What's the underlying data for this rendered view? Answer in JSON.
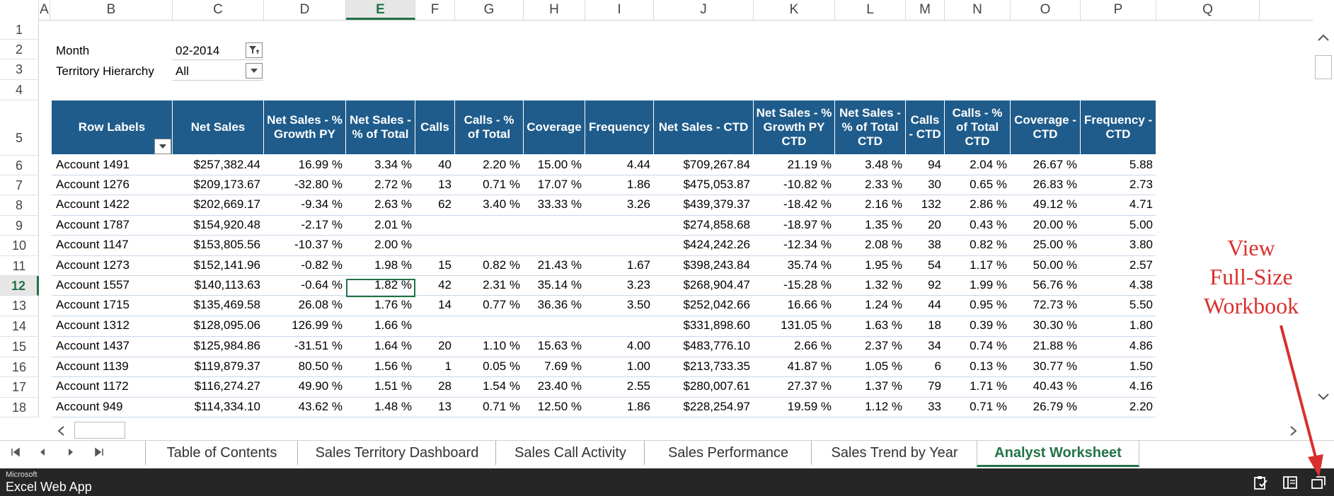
{
  "columns": [
    "A",
    "B",
    "C",
    "D",
    "E",
    "F",
    "G",
    "H",
    "I",
    "J",
    "K",
    "L",
    "M",
    "N",
    "O",
    "P",
    "Q"
  ],
  "rows": [
    "1",
    "2",
    "3",
    "4",
    "5",
    "6",
    "7",
    "8",
    "9",
    "10",
    "11",
    "12",
    "13",
    "14",
    "15",
    "16",
    "17",
    "18"
  ],
  "filters": [
    {
      "label": "Month",
      "value": "02-2014",
      "icon": "filter-applied-icon"
    },
    {
      "label": "Territory Hierarchy",
      "value": "All",
      "icon": "dropdown-arrow-icon"
    }
  ],
  "pivot": {
    "headers": [
      "Row Labels",
      "Net Sales",
      "Net Sales - % Growth PY",
      "Net Sales - % of Total",
      "Calls",
      "Calls - % of Total",
      "Coverage",
      "Frequency",
      "Net Sales - CTD",
      "Net Sales - % Growth PY CTD",
      "Net Sales - % of Total CTD",
      "Calls - CTD",
      "Calls - % of Total CTD",
      "Coverage - CTD",
      "Frequency - CTD"
    ],
    "rows": [
      [
        "Account 1491",
        "$257,382.44",
        "16.99 %",
        "3.34 %",
        "40",
        "2.20 %",
        "15.00 %",
        "4.44",
        "$709,267.84",
        "21.19 %",
        "3.48 %",
        "94",
        "2.04 %",
        "26.67 %",
        "5.88"
      ],
      [
        "Account 1276",
        "$209,173.67",
        "-32.80 %",
        "2.72 %",
        "13",
        "0.71 %",
        "17.07 %",
        "1.86",
        "$475,053.87",
        "-10.82 %",
        "2.33 %",
        "30",
        "0.65 %",
        "26.83 %",
        "2.73"
      ],
      [
        "Account 1422",
        "$202,669.17",
        "-9.34 %",
        "2.63 %",
        "62",
        "3.40 %",
        "33.33 %",
        "3.26",
        "$439,379.37",
        "-18.42 %",
        "2.16 %",
        "132",
        "2.86 %",
        "49.12 %",
        "4.71"
      ],
      [
        "Account 1787",
        "$154,920.48",
        "-2.17 %",
        "2.01 %",
        "",
        "",
        "",
        "",
        "$274,858.68",
        "-18.97 %",
        "1.35 %",
        "20",
        "0.43 %",
        "20.00 %",
        "5.00"
      ],
      [
        "Account 1147",
        "$153,805.56",
        "-10.37 %",
        "2.00 %",
        "",
        "",
        "",
        "",
        "$424,242.26",
        "-12.34 %",
        "2.08 %",
        "38",
        "0.82 %",
        "25.00 %",
        "3.80"
      ],
      [
        "Account 1273",
        "$152,141.96",
        "-0.82 %",
        "1.98 %",
        "15",
        "0.82 %",
        "21.43 %",
        "1.67",
        "$398,243.84",
        "35.74 %",
        "1.95 %",
        "54",
        "1.17 %",
        "50.00 %",
        "2.57"
      ],
      [
        "Account 1557",
        "$140,113.63",
        "-0.64 %",
        "1.82 %",
        "42",
        "2.31 %",
        "35.14 %",
        "3.23",
        "$268,904.47",
        "-15.28 %",
        "1.32 %",
        "92",
        "1.99 %",
        "56.76 %",
        "4.38"
      ],
      [
        "Account 1715",
        "$135,469.58",
        "26.08 %",
        "1.76 %",
        "14",
        "0.77 %",
        "36.36 %",
        "3.50",
        "$252,042.66",
        "16.66 %",
        "1.24 %",
        "44",
        "0.95 %",
        "72.73 %",
        "5.50"
      ],
      [
        "Account 1312",
        "$128,095.06",
        "126.99 %",
        "1.66 %",
        "",
        "",
        "",
        "",
        "$331,898.60",
        "131.05 %",
        "1.63 %",
        "18",
        "0.39 %",
        "30.30 %",
        "1.80"
      ],
      [
        "Account 1437",
        "$125,984.86",
        "-31.51 %",
        "1.64 %",
        "20",
        "1.10 %",
        "15.63 %",
        "4.00",
        "$483,776.10",
        "2.66 %",
        "2.37 %",
        "34",
        "0.74 %",
        "21.88 %",
        "4.86"
      ],
      [
        "Account 1139",
        "$119,879.37",
        "80.50 %",
        "1.56 %",
        "1",
        "0.05 %",
        "7.69 %",
        "1.00",
        "$213,733.35",
        "41.87 %",
        "1.05 %",
        "6",
        "0.13 %",
        "30.77 %",
        "1.50"
      ],
      [
        "Account 1172",
        "$116,274.27",
        "49.90 %",
        "1.51 %",
        "28",
        "1.54 %",
        "23.40 %",
        "2.55",
        "$280,007.61",
        "27.37 %",
        "1.37 %",
        "79",
        "1.71 %",
        "40.43 %",
        "4.16"
      ],
      [
        "Account 949",
        "$114,334.10",
        "43.62 %",
        "1.48 %",
        "13",
        "0.71 %",
        "12.50 %",
        "1.86",
        "$228,254.97",
        "19.59 %",
        "1.12 %",
        "33",
        "0.71 %",
        "26.79 %",
        "2.20"
      ]
    ]
  },
  "selected_cell": {
    "column": "E",
    "row": "12"
  },
  "tabs": [
    "Table of Contents",
    "Sales Territory Dashboard",
    "Sales Call Activity",
    "Sales Performance",
    "Sales Trend by Year",
    "Analyst Worksheet"
  ],
  "active_tab": "Analyst Worksheet",
  "statusbar": {
    "brand_small": "Microsoft",
    "brand": "Excel Web App"
  },
  "annotation": {
    "line1": "View",
    "line2": "Full-Size",
    "line3": "Workbook"
  },
  "colors": {
    "header_bg": "#1f5c8b",
    "accent": "#217346",
    "annotation": "#d9302e"
  }
}
